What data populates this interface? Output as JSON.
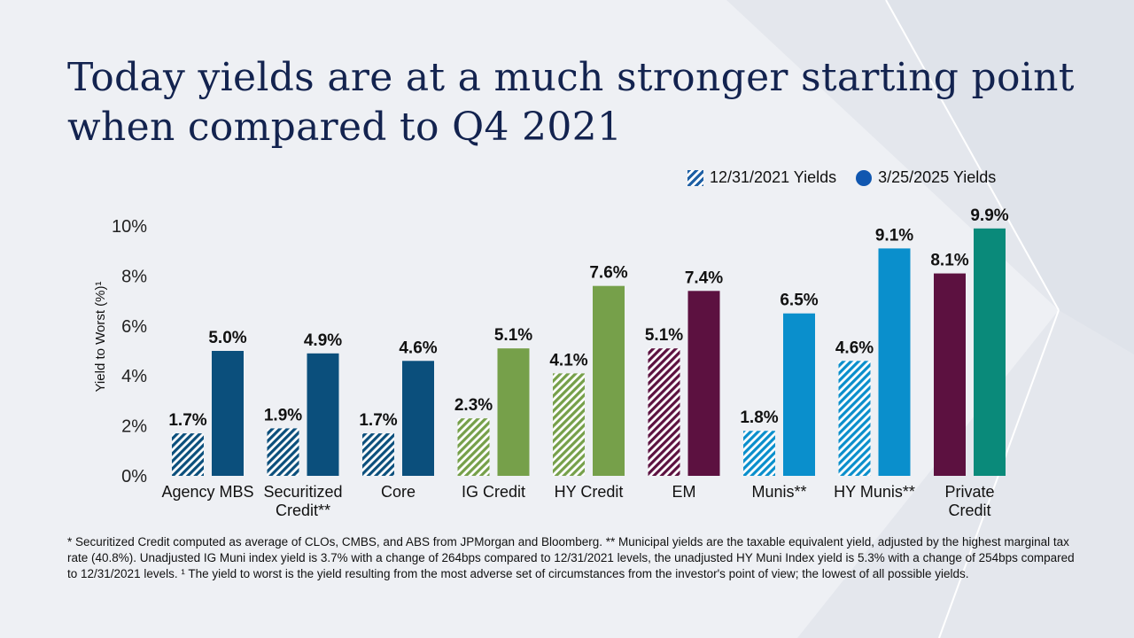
{
  "title_line1": "Today yields are at a much stronger starting point",
  "title_line2": "when compared to Q4 2021",
  "footnote": "* Securitized Credit computed as average of CLOs, CMBS, and ABS from JPMorgan and Bloomberg. ** Municipal yields are the taxable equivalent yield, adjusted by the highest marginal tax rate (40.8%). Unadjusted IG Muni index yield is 3.7% with a change of 264bps compared to 12/31/2021 levels, the unadjusted HY Muni Index yield is 5.3% with a change of 254bps compared to 12/31/2021 levels. ¹ The yield to worst is the yield resulting from the most adverse set of circumstances from the investor's point of view; the lowest of all possible yields.",
  "chart_data": {
    "type": "bar",
    "ylabel": "Yield to Worst (%)¹",
    "ylim": [
      0,
      10
    ],
    "yticks": [
      "0%",
      "2%",
      "4%",
      "6%",
      "8%",
      "10%"
    ],
    "legend_position": "top-right",
    "categories": [
      "Agency MBS",
      "Securitized Credit**",
      "Core",
      "IG Credit",
      "HY Credit",
      "EM",
      "Munis**",
      "HY Munis**",
      "Private Credit"
    ],
    "category_lines": [
      [
        "Agency MBS"
      ],
      [
        "Securitized",
        "Credit**"
      ],
      [
        "Core"
      ],
      [
        "IG Credit"
      ],
      [
        "HY Credit"
      ],
      [
        "EM"
      ],
      [
        "Munis**"
      ],
      [
        "HY Munis**"
      ],
      [
        "Private",
        "Credit"
      ]
    ],
    "category_colors": [
      "#0b4f7c",
      "#0b4f7c",
      "#0b4f7c",
      "#76a04a",
      "#76a04a",
      "#5c1140",
      "#0a8fcc",
      "#0a8fcc",
      null
    ],
    "series": [
      {
        "name": "12/31/2021 Yields",
        "style": "hatched",
        "values": [
          1.7,
          1.9,
          1.7,
          2.3,
          4.1,
          5.1,
          1.8,
          4.6,
          8.1
        ],
        "labels": [
          "1.7",
          "1.9",
          "1.7",
          "2.3",
          "4.1",
          "5.1",
          "1.8",
          "4.6",
          "8.1"
        ]
      },
      {
        "name": "3/25/2025 Yields",
        "style": "solid",
        "values": [
          5.0,
          4.9,
          4.6,
          5.1,
          7.6,
          7.4,
          6.5,
          9.1,
          9.9
        ],
        "labels": [
          "5.0",
          "4.9",
          "4.6",
          "5.1",
          "7.6",
          "7.4",
          "6.5",
          "9.1",
          "9.9"
        ]
      }
    ],
    "private_credit_colors": {
      "series1": "#5c1140",
      "series2": "#0a8a7a"
    },
    "grid": false
  }
}
